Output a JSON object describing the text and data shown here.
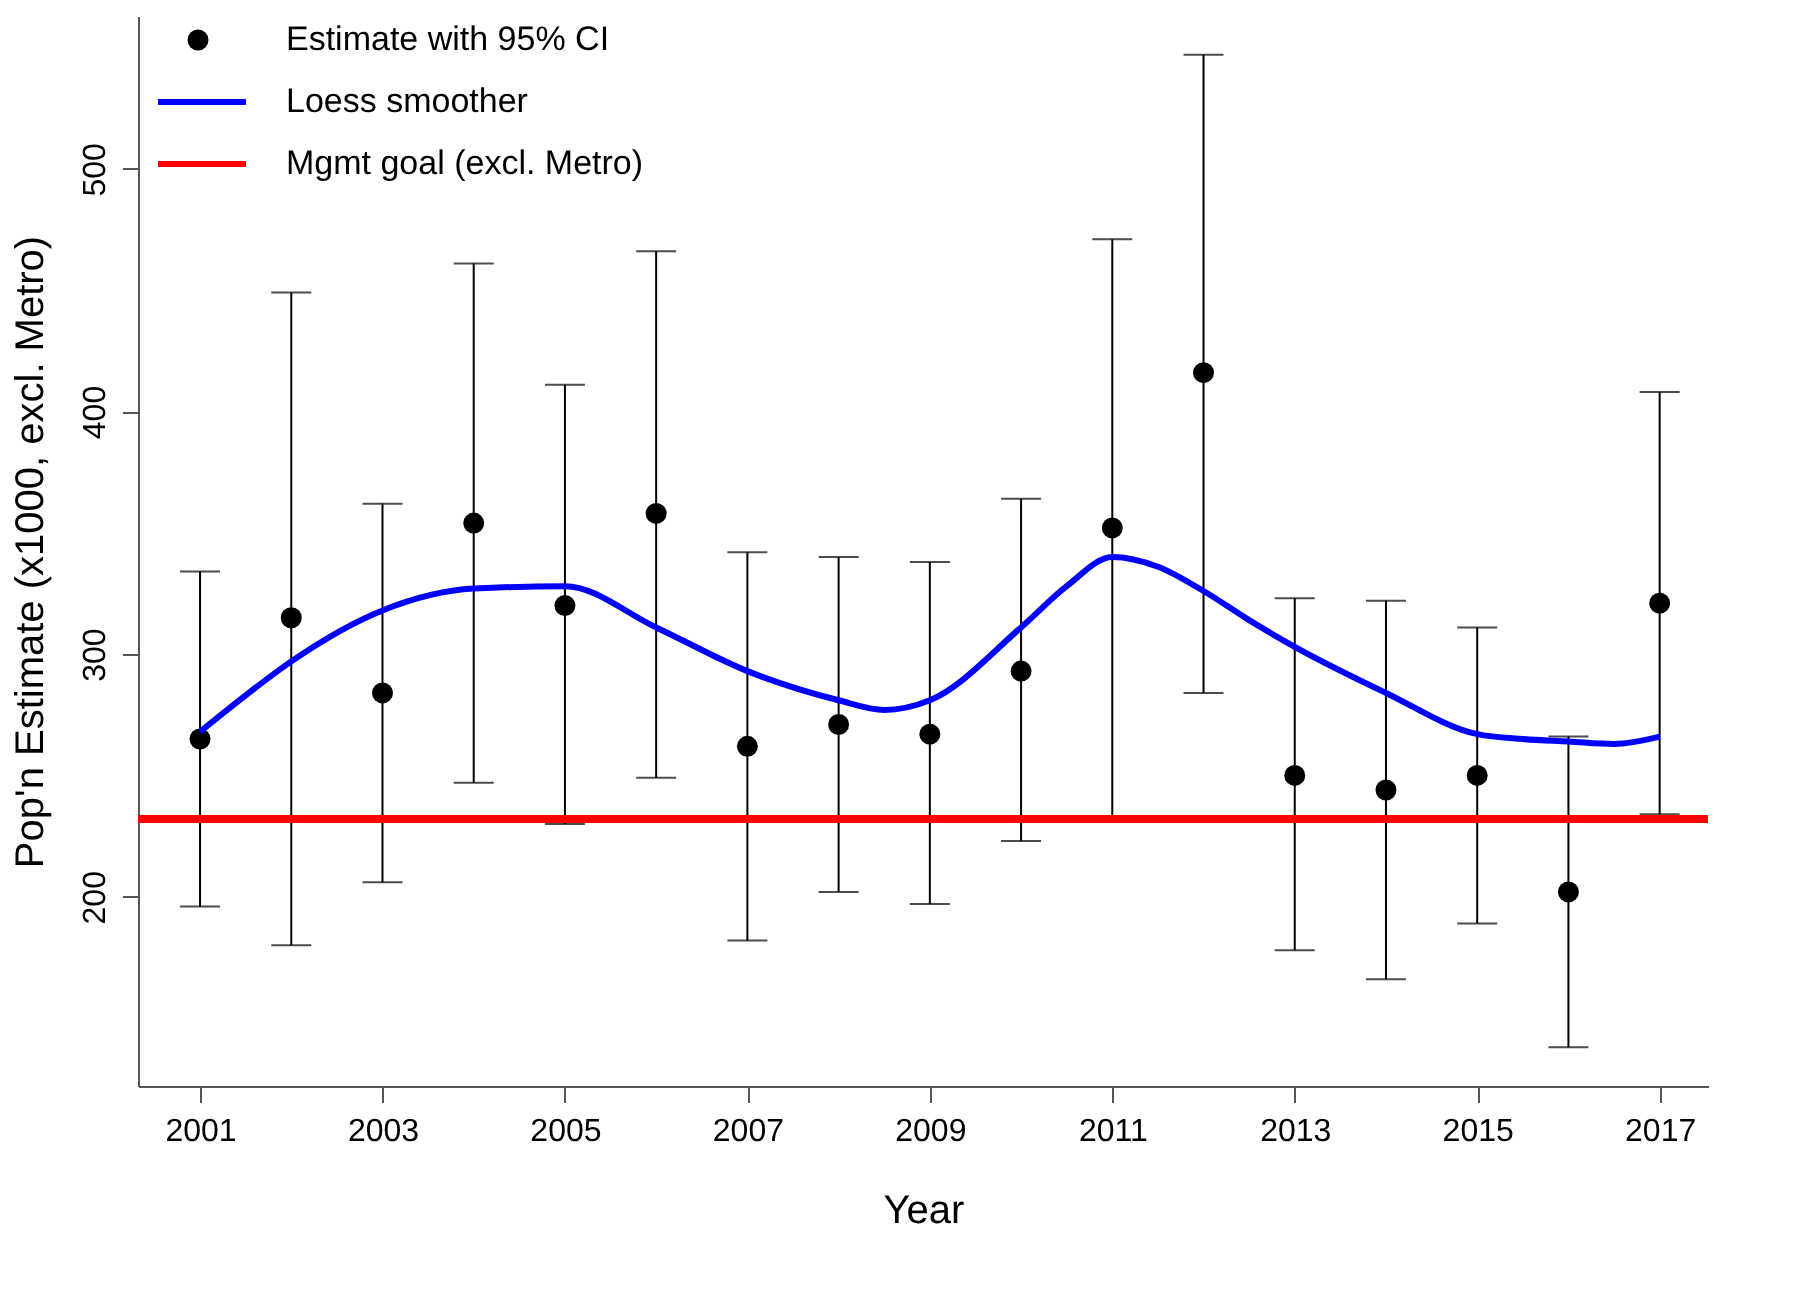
{
  "chart_data": {
    "type": "scatter",
    "xlabel": "Year",
    "ylabel": "Pop'n Estimate (x1000, excl. Metro)",
    "xlim": [
      2000.32,
      2017.53
    ],
    "ylim": [
      122,
      563
    ],
    "xticks": [
      2001,
      2003,
      2005,
      2007,
      2009,
      2011,
      2013,
      2015,
      2017
    ],
    "yticks": [
      200,
      300,
      400,
      500
    ],
    "grid": false,
    "legend": "top left",
    "series": [
      {
        "name": "Estimate with 95% CI",
        "marker": "circle",
        "color": "#000000",
        "x": [
          2001,
          2002,
          2003,
          2004,
          2005,
          2006,
          2007,
          2008,
          2009,
          2010,
          2011,
          2012,
          2013,
          2014,
          2015,
          2016,
          2017
        ],
        "values": [
          265,
          315,
          284,
          354,
          320,
          358,
          262,
          271,
          267,
          293,
          352,
          416,
          250,
          244,
          250,
          202,
          321
        ],
        "errors": [
          [
            196,
            334
          ],
          [
            180,
            449
          ],
          [
            206,
            362
          ],
          [
            247,
            461
          ],
          [
            230,
            411
          ],
          [
            249,
            466
          ],
          [
            182,
            342
          ],
          [
            202,
            340
          ],
          [
            197,
            338
          ],
          [
            223,
            364
          ],
          [
            233,
            471
          ],
          [
            284,
            547
          ],
          [
            178,
            323
          ],
          [
            166,
            322
          ],
          [
            189,
            311
          ],
          [
            138,
            266
          ],
          [
            234,
            408
          ]
        ]
      },
      {
        "name": "Loess smoother",
        "type": "line",
        "line_style": "solid",
        "color": "#0000ff",
        "x": [
          2001,
          2001.5,
          2002,
          2003,
          2004,
          2005,
          2006,
          2007,
          2008,
          2008.5,
          2009,
          2010,
          2010.5,
          2011,
          2011.5,
          2012,
          2012.5,
          2013,
          2014,
          2015,
          2015.5,
          2016,
          2016.5,
          2017
        ],
        "values": [
          268,
          283,
          297,
          318,
          327,
          328,
          311,
          293,
          281,
          277,
          281,
          311,
          328,
          340,
          336,
          326,
          314,
          303,
          284,
          267,
          265,
          264,
          263,
          266
        ]
      }
    ],
    "ref_lines": [
      {
        "axis": "y",
        "value": 232,
        "label": "Mgmt goal (excl. Metro)",
        "color": "#ff0000",
        "line_style": "solid"
      }
    ]
  }
}
